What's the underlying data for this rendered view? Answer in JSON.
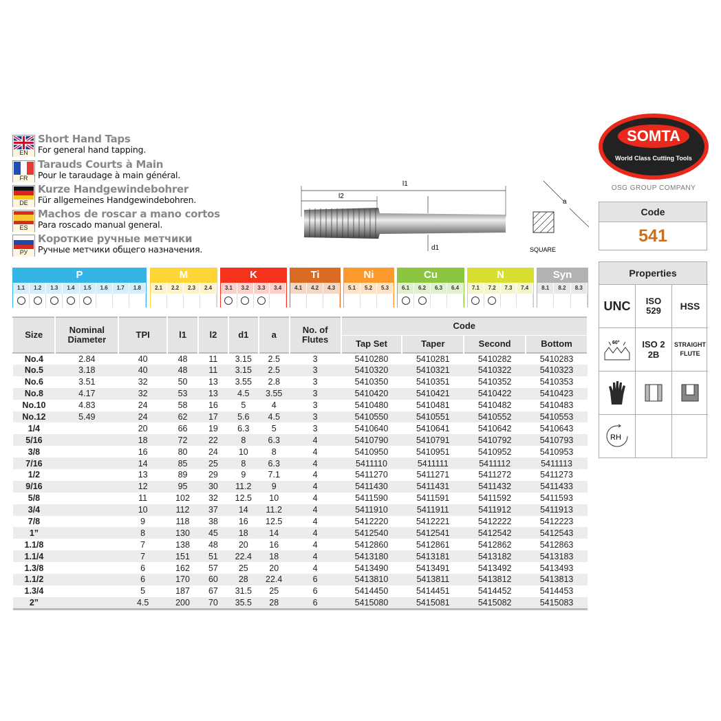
{
  "languages": [
    {
      "code": "EN",
      "title": "Short Hand Taps",
      "subtitle": "For general hand tapping."
    },
    {
      "code": "FR",
      "title": "Tarauds Courts à Main",
      "subtitle": "Pour le taraudage à main général."
    },
    {
      "code": "DE",
      "title": "Kurze Handgewindebohrer",
      "subtitle": "Für allgemeines Handgewindebohren."
    },
    {
      "code": "ES",
      "title": "Machos de roscar a mano cortos",
      "subtitle": "Para roscado manual general."
    },
    {
      "code": "РУ",
      "title": "Короткие ручные метчики",
      "subtitle": "Ручные метчики общего назначения."
    }
  ],
  "diagram": {
    "l1": "l1",
    "l2": "l2",
    "d1": "d1",
    "a": "a",
    "square": "SQUARE"
  },
  "brand": {
    "logo": "SOMTA",
    "tagline": "World Class Cutting Tools",
    "group": "OSG GROUP COMPANY",
    "logo_color": "#e8291c"
  },
  "code_box": {
    "label": "Code",
    "value": "541",
    "value_color": "#c8701e"
  },
  "properties": {
    "title": "Properties",
    "cells": [
      "UNC",
      "ISO 529",
      "HSS",
      "60°",
      "ISO 2 2B",
      "STRAIGHT FLUTE",
      "glove-icon",
      "through-hole-icon",
      "blind-hole-icon",
      "RH",
      "",
      ""
    ]
  },
  "materials": [
    {
      "name": "P",
      "color": "#35b5e5",
      "light": "#d6eef9",
      "subs": [
        "1.1",
        "1.2",
        "1.3",
        "1.4",
        "1.5",
        "1.6",
        "1.7",
        "1.8"
      ],
      "suitable": [
        true,
        true,
        true,
        true,
        true,
        false,
        false,
        false
      ]
    },
    {
      "name": "M",
      "color": "#fdd635",
      "light": "#fff4c9",
      "subs": [
        "2.1",
        "2.2",
        "2.3",
        "2.4"
      ],
      "suitable": [
        false,
        false,
        false,
        false
      ]
    },
    {
      "name": "K",
      "color": "#f5321c",
      "light": "#fbd0c8",
      "subs": [
        "3.1",
        "3.2",
        "3.3",
        "3.4"
      ],
      "suitable": [
        true,
        true,
        true,
        false
      ]
    },
    {
      "name": "Ti",
      "color": "#db6a25",
      "light": "#f3d8c6",
      "subs": [
        "4.1",
        "4.2",
        "4.3"
      ],
      "suitable": [
        false,
        false,
        false
      ]
    },
    {
      "name": "Ni",
      "color": "#fb9a2c",
      "light": "#fde2c5",
      "subs": [
        "5.1",
        "5.2",
        "5.3"
      ],
      "suitable": [
        false,
        false,
        false
      ]
    },
    {
      "name": "Cu",
      "color": "#8cc641",
      "light": "#e2f0d2",
      "subs": [
        "6.1",
        "6.2",
        "6.3",
        "6.4"
      ],
      "suitable": [
        true,
        true,
        false,
        false
      ]
    },
    {
      "name": "N",
      "color": "#d7df33",
      "light": "#f4f6cf",
      "subs": [
        "7.1",
        "7.2",
        "7.3",
        "7.4"
      ],
      "suitable": [
        true,
        true,
        false,
        false
      ]
    },
    {
      "name": "Syn",
      "color": "#b2b2b2",
      "light": "#e8e8e8",
      "subs": [
        "8.1",
        "8.2",
        "8.3"
      ],
      "suitable": [
        false,
        false,
        false
      ]
    }
  ],
  "table": {
    "headers": {
      "size": "Size",
      "nominal": "Nominal Diameter",
      "tpi": "TPI",
      "l1": "l1",
      "l2": "l2",
      "d1": "d1",
      "a": "a",
      "flutes": "No. of Flutes",
      "code": "Code",
      "tap_set": "Tap Set",
      "taper": "Taper",
      "second": "Second",
      "bottom": "Bottom"
    },
    "rows": [
      [
        "No.4",
        "2.84",
        "40",
        "48",
        "11",
        "3.15",
        "2.5",
        "3",
        "5410280",
        "5410281",
        "5410282",
        "5410283"
      ],
      [
        "No.5",
        "3.18",
        "40",
        "48",
        "11",
        "3.15",
        "2.5",
        "3",
        "5410320",
        "5410321",
        "5410322",
        "5410323"
      ],
      [
        "No.6",
        "3.51",
        "32",
        "50",
        "13",
        "3.55",
        "2.8",
        "3",
        "5410350",
        "5410351",
        "5410352",
        "5410353"
      ],
      [
        "No.8",
        "4.17",
        "32",
        "53",
        "13",
        "4.5",
        "3.55",
        "3",
        "5410420",
        "5410421",
        "5410422",
        "5410423"
      ],
      [
        "No.10",
        "4.83",
        "24",
        "58",
        "16",
        "5",
        "4",
        "3",
        "5410480",
        "5410481",
        "5410482",
        "5410483"
      ],
      [
        "No.12",
        "5.49",
        "24",
        "62",
        "17",
        "5.6",
        "4.5",
        "3",
        "5410550",
        "5410551",
        "5410552",
        "5410553"
      ],
      [
        "1/4",
        "",
        "20",
        "66",
        "19",
        "6.3",
        "5",
        "3",
        "5410640",
        "5410641",
        "5410642",
        "5410643"
      ],
      [
        "5/16",
        "",
        "18",
        "72",
        "22",
        "8",
        "6.3",
        "4",
        "5410790",
        "5410791",
        "5410792",
        "5410793"
      ],
      [
        "3/8",
        "",
        "16",
        "80",
        "24",
        "10",
        "8",
        "4",
        "5410950",
        "5410951",
        "5410952",
        "5410953"
      ],
      [
        "7/16",
        "",
        "14",
        "85",
        "25",
        "8",
        "6.3",
        "4",
        "5411110",
        "5411111",
        "5411112",
        "5411113"
      ],
      [
        "1/2",
        "",
        "13",
        "89",
        "29",
        "9",
        "7.1",
        "4",
        "5411270",
        "5411271",
        "5411272",
        "5411273"
      ],
      [
        "9/16",
        "",
        "12",
        "95",
        "30",
        "11.2",
        "9",
        "4",
        "5411430",
        "5411431",
        "5411432",
        "5411433"
      ],
      [
        "5/8",
        "",
        "11",
        "102",
        "32",
        "12.5",
        "10",
        "4",
        "5411590",
        "5411591",
        "5411592",
        "5411593"
      ],
      [
        "3/4",
        "",
        "10",
        "112",
        "37",
        "14",
        "11.2",
        "4",
        "5411910",
        "5411911",
        "5411912",
        "5411913"
      ],
      [
        "7/8",
        "",
        "9",
        "118",
        "38",
        "16",
        "12.5",
        "4",
        "5412220",
        "5412221",
        "5412222",
        "5412223"
      ],
      [
        "1”",
        "",
        "8",
        "130",
        "45",
        "18",
        "14",
        "4",
        "5412540",
        "5412541",
        "5412542",
        "5412543"
      ],
      [
        "1.1/8",
        "",
        "7",
        "138",
        "48",
        "20",
        "16",
        "4",
        "5412860",
        "5412861",
        "5412862",
        "5412863"
      ],
      [
        "1.1/4",
        "",
        "7",
        "151",
        "51",
        "22.4",
        "18",
        "4",
        "5413180",
        "5413181",
        "5413182",
        "5413183"
      ],
      [
        "1.3/8",
        "",
        "6",
        "162",
        "57",
        "25",
        "20",
        "4",
        "5413490",
        "5413491",
        "5413492",
        "5413493"
      ],
      [
        "1.1/2",
        "",
        "6",
        "170",
        "60",
        "28",
        "22.4",
        "6",
        "5413810",
        "5413811",
        "5413812",
        "5413813"
      ],
      [
        "1.3/4",
        "",
        "5",
        "187",
        "67",
        "31.5",
        "25",
        "6",
        "5414450",
        "5414451",
        "5414452",
        "5414453"
      ],
      [
        "2”",
        "",
        "4.5",
        "200",
        "70",
        "35.5",
        "28",
        "6",
        "5415080",
        "5415081",
        "5415082",
        "5415083"
      ]
    ]
  }
}
